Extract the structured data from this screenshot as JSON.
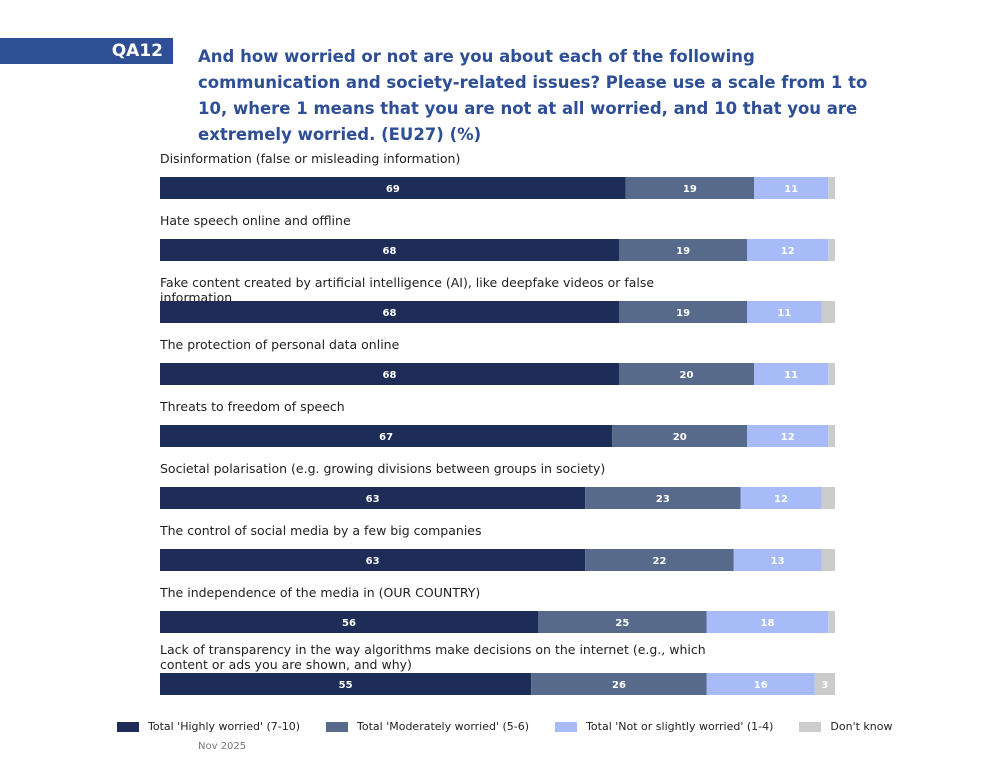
{
  "header": {
    "question_code": "QA12",
    "title": "And how worried or not are you about each of the following communication and society-related issues? Please use a scale from 1 to 10, where 1 means that you are not at all worried, and 10 that you are extremely worried. (EU27) (%)"
  },
  "footer": {
    "date": "Nov 2025"
  },
  "chart_data": {
    "type": "bar",
    "orientation": "horizontal-stacked-100",
    "title": "And how worried or not are you about each of the following communication and society-related issues? (EU27) (%)",
    "xlim": [
      0,
      100
    ],
    "grid": false,
    "legend_position": "bottom",
    "categories": [
      "Disinformation (false or misleading information)",
      "Hate speech online and offline",
      "Fake content created by artificial intelligence (AI), like deepfake videos or false information",
      "The protection of personal data online",
      "Threats to freedom of speech",
      "Societal polarisation (e.g. growing divisions between groups in society)",
      "The control of social media by a few big companies",
      "The independence of the media in (OUR COUNTRY)",
      "Lack of transparency in the way algorithms make decisions on the internet (e.g., which content or ads you are shown, and why)"
    ],
    "series": [
      {
        "name": "Total 'Highly worried' (7-10)",
        "color": "#1d2d57",
        "label_color": "#ffffff",
        "values": [
          69,
          68,
          68,
          68,
          67,
          63,
          63,
          56,
          55
        ],
        "show_labels": true
      },
      {
        "name": "Total 'Moderately worried' (5-6)",
        "color": "#586a8c",
        "label_color": "#ffffff",
        "values": [
          19,
          19,
          19,
          20,
          20,
          23,
          22,
          25,
          26
        ],
        "show_labels": true
      },
      {
        "name": "Total 'Not or slightly worried' (1-4)",
        "color": "#a6bbf7",
        "label_color": "#ffffff",
        "values": [
          11,
          12,
          11,
          11,
          12,
          12,
          13,
          18,
          16
        ],
        "show_labels": true
      },
      {
        "name": "Don't know",
        "color": "#cccccc",
        "label_color": "#ffffff",
        "values": [
          1,
          1,
          2,
          1,
          1,
          2,
          2,
          1,
          3
        ],
        "show_labels": false,
        "labeled_indices": [
          8
        ]
      }
    ]
  }
}
